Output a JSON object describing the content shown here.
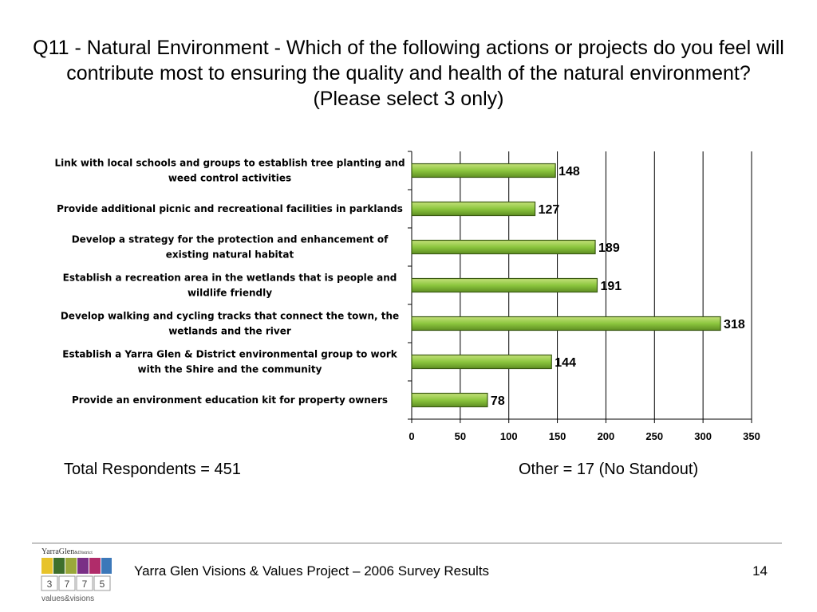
{
  "title": "Q11 - Natural Environment - Which of the following actions or projects do you feel will contribute most to ensuring the quality and health of the natural environment? (Please select 3 only)",
  "chart_data": {
    "type": "bar",
    "orientation": "horizontal",
    "categories": [
      [
        "Link with local schools and groups to establish tree planting and",
        "weed control activities"
      ],
      [
        "Provide additional picnic and recreational facilities in parklands"
      ],
      [
        "Develop a strategy for the protection and enhancement of",
        "existing natural habitat"
      ],
      [
        "Establish a recreation area in the wetlands that is people and",
        "wildlife friendly"
      ],
      [
        "Develop walking and cycling tracks that connect the town, the",
        "wetlands and the river"
      ],
      [
        "Establish a Yarra Glen & District environmental group to work",
        "with the Shire and the community"
      ],
      [
        "Provide an environment education kit for property owners"
      ]
    ],
    "values": [
      148,
      127,
      189,
      191,
      318,
      144,
      78
    ],
    "xlim": [
      0,
      350
    ],
    "xticks": [
      0,
      50,
      100,
      150,
      200,
      250,
      300,
      350
    ],
    "grid": "vertical",
    "bar_color": "#8cc63e",
    "bar_edge": "#3a5a12",
    "data_labels": true
  },
  "notes": {
    "total": "Total Respondents = 451",
    "other": "Other = 17 (No Standout)"
  },
  "footer": {
    "text": "Yarra Glen Visions & Values Project – 2006 Survey Results",
    "page": "14"
  },
  "logo": {
    "top_text": "YarraGlen",
    "top_small": "&District",
    "digits": [
      "3",
      "7",
      "7",
      "5"
    ],
    "bottom_text": "values&visions"
  }
}
